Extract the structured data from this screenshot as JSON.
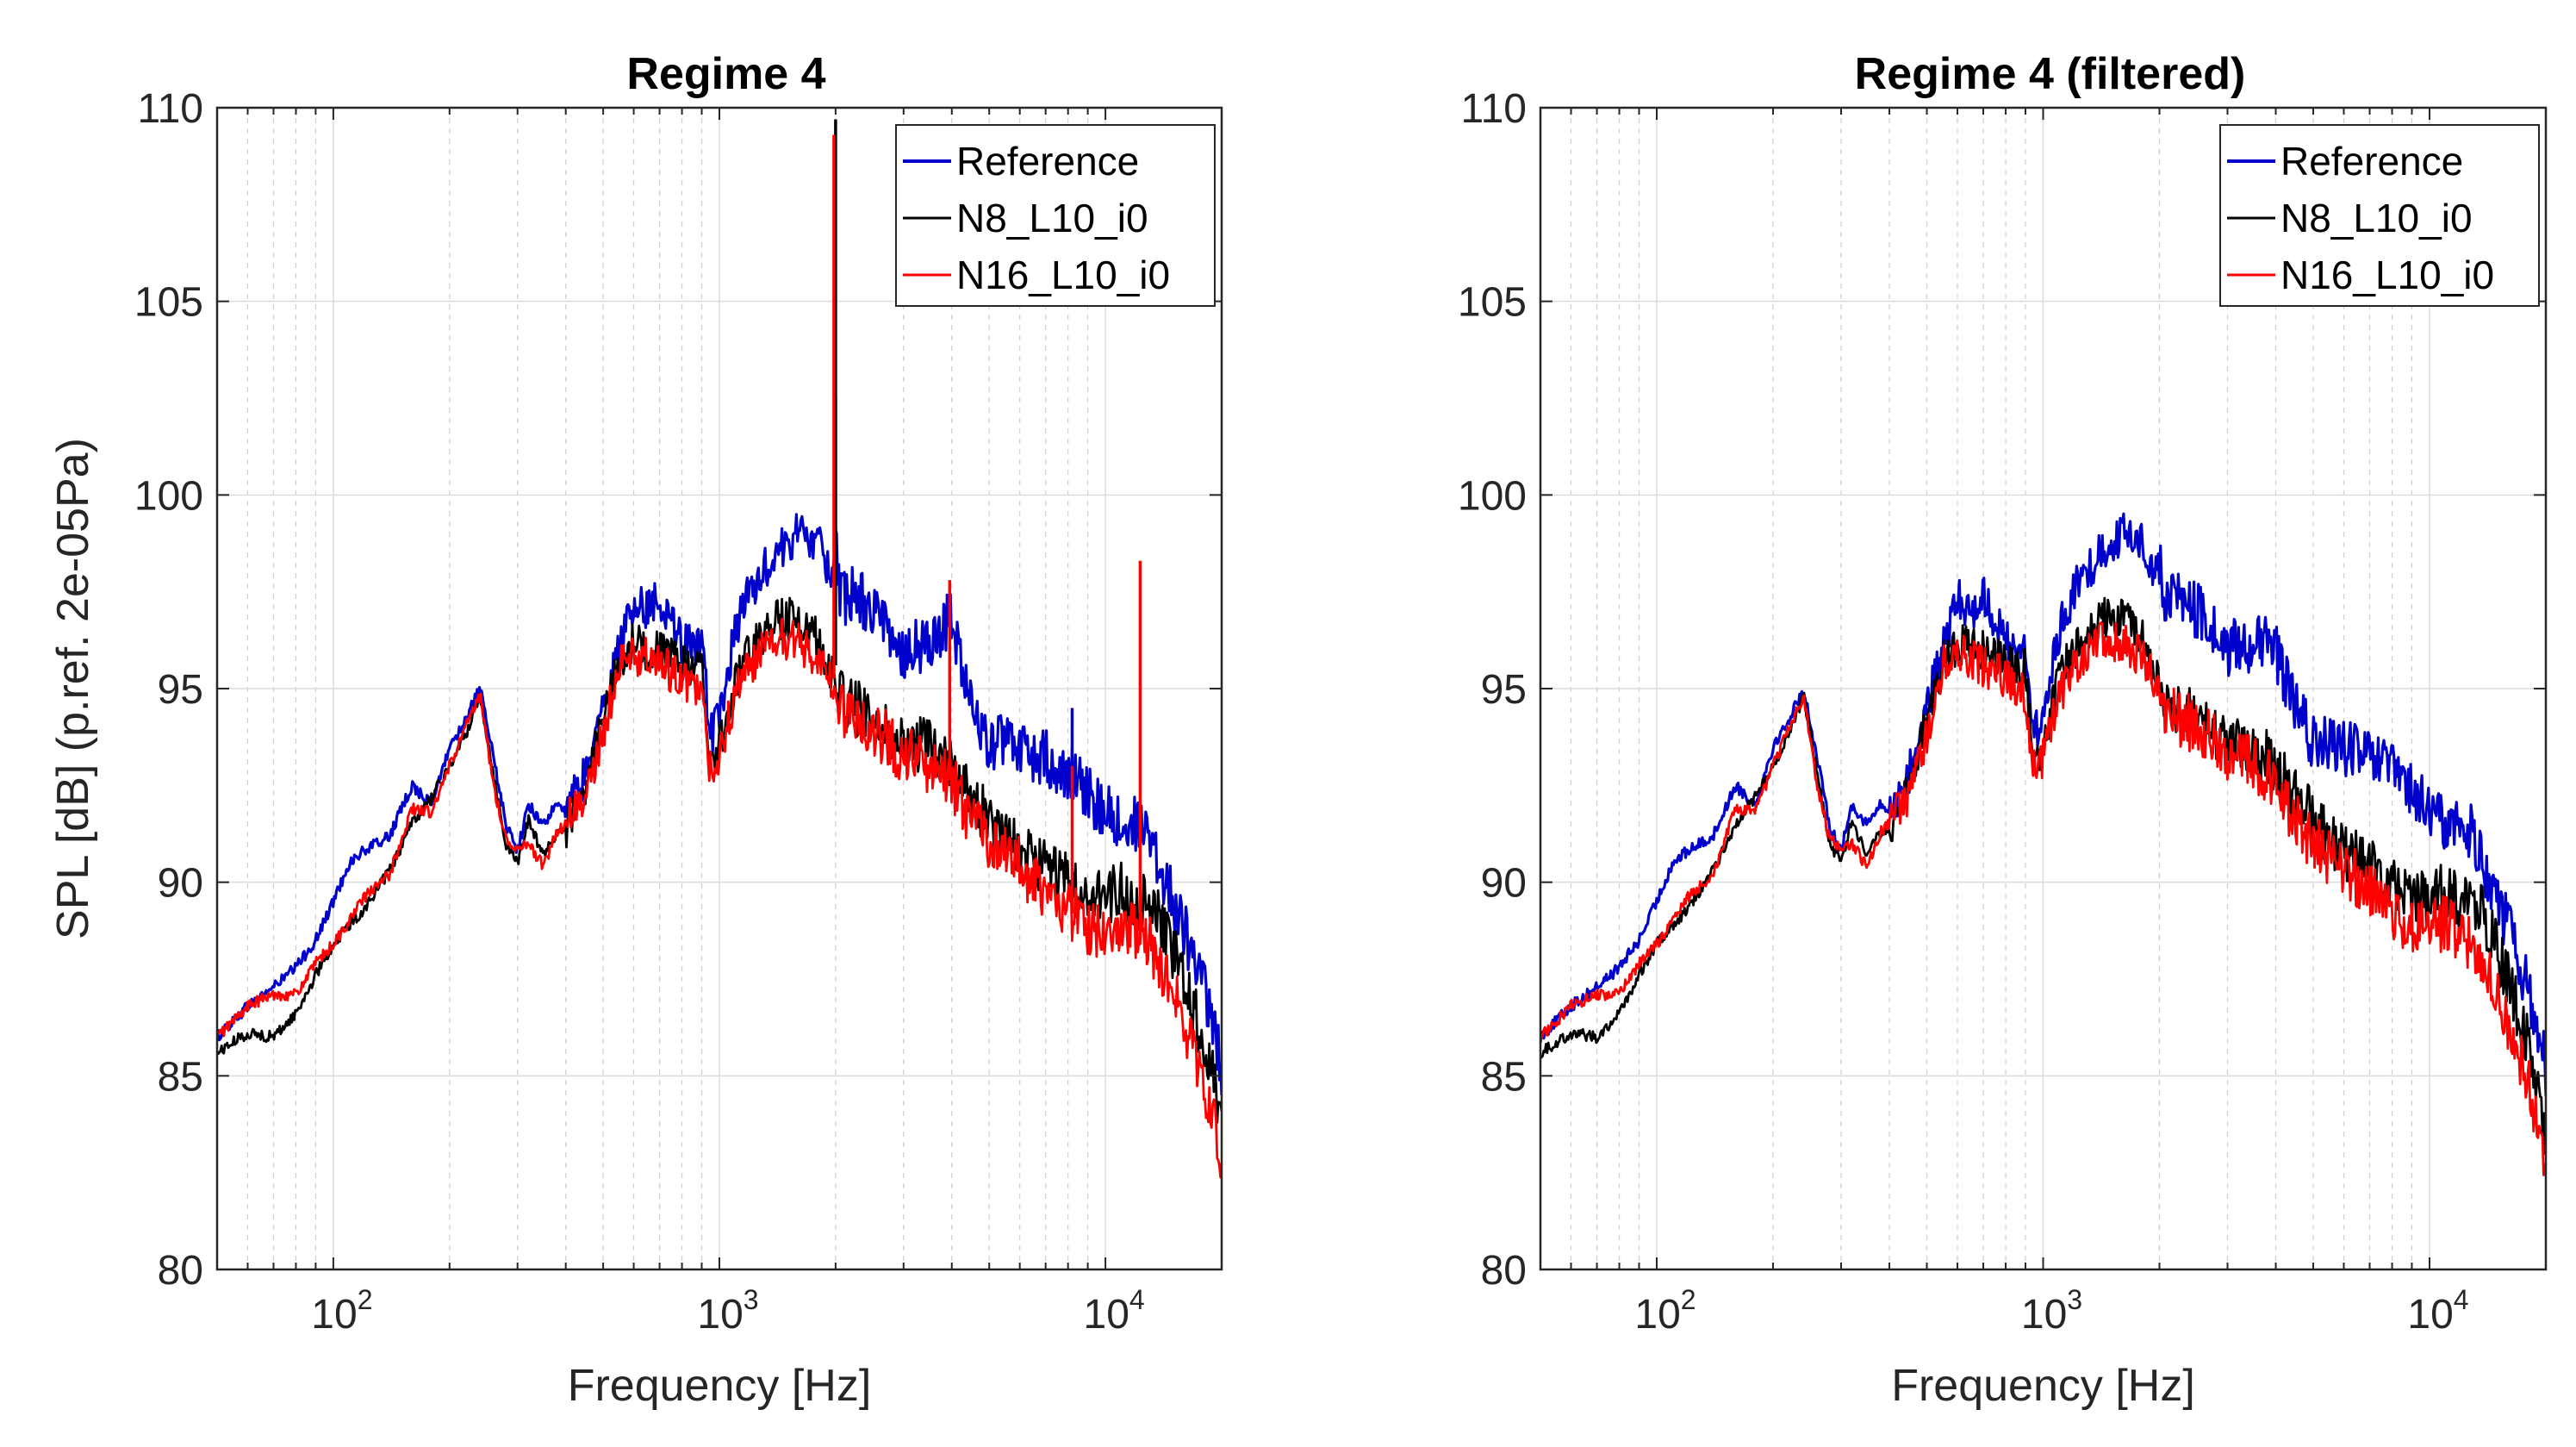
{
  "colors": {
    "reference": "#0000cc",
    "n8": "#000000",
    "n16": "#ff0000",
    "grid_major": "#dcdcdc",
    "grid_minor": "#cfcfcf",
    "axis": "#262626"
  },
  "chart_data": [
    {
      "type": "line",
      "title": "Regime 4",
      "xlabel": "Frequency [Hz]",
      "ylabel": "SPL [dB] (p.ref. 2e-05Pa)",
      "xscale": "log",
      "xlim": [
        50,
        20000
      ],
      "ylim": [
        80,
        110
      ],
      "yticks": [
        "80",
        "85",
        "90",
        "95",
        "100",
        "105",
        "110"
      ],
      "xticks": [
        {
          "base": "10",
          "exp": "2",
          "value": 100
        },
        {
          "base": "10",
          "exp": "3",
          "value": 1000
        },
        {
          "base": "10",
          "exp": "4",
          "value": 10000
        }
      ],
      "grid": true,
      "legend_position": "top-right",
      "series": [
        {
          "name": "Reference",
          "color_key": "reference",
          "x": [
            50,
            60,
            70,
            80,
            90,
            100,
            110,
            120,
            140,
            160,
            180,
            200,
            220,
            240,
            260,
            280,
            300,
            320,
            350,
            380,
            400,
            450,
            500,
            550,
            600,
            650,
            700,
            800,
            900,
            950,
            1000,
            1100,
            1200,
            1400,
            1600,
            1800,
            1950,
            2000,
            2050,
            2200,
            2500,
            3000,
            3500,
            4000,
            4500,
            5000,
            6000,
            7000,
            8000,
            9000,
            10000,
            11000,
            12000,
            13000,
            14000,
            15000,
            16000,
            17000,
            18000,
            19000,
            20000
          ],
          "y": [
            86.0,
            86.8,
            87.3,
            87.8,
            88.5,
            89.5,
            90.5,
            90.8,
            91.2,
            92.5,
            92.0,
            93.5,
            94.2,
            95.0,
            93.2,
            91.5,
            90.8,
            92.0,
            91.5,
            92.0,
            91.8,
            92.8,
            94.5,
            96.0,
            97.3,
            97.0,
            97.4,
            96.2,
            96.0,
            93.8,
            94.2,
            96.5,
            97.5,
            98.5,
            99.0,
            98.8,
            98.0,
            98.8,
            97.2,
            97.5,
            97.0,
            96.0,
            96.2,
            96.8,
            94.5,
            93.6,
            93.5,
            93.2,
            92.9,
            92.3,
            91.8,
            91.5,
            91.5,
            91.2,
            90.3,
            89.5,
            88.8,
            88.0,
            87.2,
            86.2,
            85.2
          ],
          "spikes": [
            {
              "x": 2000,
              "y": 102.5
            },
            {
              "x": 8200,
              "y": 94.5
            }
          ]
        },
        {
          "name": "N8_L10_i0",
          "color_key": "n8",
          "x": [
            50,
            60,
            70,
            80,
            90,
            100,
            110,
            120,
            140,
            160,
            180,
            200,
            220,
            240,
            260,
            280,
            300,
            320,
            350,
            380,
            400,
            450,
            500,
            550,
            600,
            650,
            700,
            800,
            900,
            950,
            1000,
            1100,
            1200,
            1400,
            1600,
            1800,
            1950,
            2000,
            2050,
            2200,
            2500,
            3000,
            3500,
            4000,
            4500,
            5000,
            6000,
            7000,
            8000,
            9000,
            10000,
            11000,
            12000,
            13000,
            14000,
            15000,
            16000,
            17000,
            18000,
            19000,
            20000
          ],
          "y": [
            85.6,
            86.1,
            86.0,
            86.6,
            87.6,
            88.4,
            88.9,
            89.3,
            90.3,
            91.5,
            92.2,
            93.0,
            93.8,
            94.8,
            92.8,
            91.0,
            90.5,
            91.6,
            90.7,
            91.3,
            91.4,
            92.4,
            94.2,
            95.7,
            96.2,
            96.0,
            96.0,
            95.6,
            95.5,
            93.0,
            93.6,
            95.2,
            96.0,
            96.8,
            96.8,
            96.3,
            95.4,
            95.6,
            94.8,
            94.6,
            94.2,
            93.6,
            93.5,
            93.0,
            92.2,
            91.6,
            90.8,
            90.4,
            90.0,
            89.5,
            89.6,
            89.8,
            89.4,
            89.5,
            89.0,
            88.2,
            87.4,
            86.6,
            85.9,
            84.9,
            83.5
          ],
          "spikes": [
            {
              "x": 2000,
              "y": 109.7
            }
          ]
        },
        {
          "name": "N16_L10_i0",
          "color_key": "n16",
          "x": [
            50,
            60,
            70,
            80,
            90,
            100,
            110,
            120,
            140,
            160,
            180,
            200,
            220,
            240,
            260,
            280,
            300,
            320,
            350,
            380,
            400,
            450,
            500,
            550,
            600,
            650,
            700,
            800,
            900,
            950,
            1000,
            1100,
            1200,
            1400,
            1600,
            1800,
            1950,
            2000,
            2050,
            2200,
            2500,
            3000,
            3500,
            4000,
            4500,
            5000,
            6000,
            7000,
            8000,
            9000,
            10000,
            11000,
            12000,
            13000,
            14000,
            15000,
            16000,
            17000,
            18000,
            19000,
            20000
          ],
          "y": [
            86.0,
            86.8,
            87.1,
            87.1,
            87.9,
            88.4,
            89.0,
            89.6,
            90.2,
            91.9,
            91.8,
            93.0,
            94.0,
            94.8,
            92.5,
            91.1,
            90.9,
            91.0,
            90.4,
            91.3,
            91.5,
            92.2,
            93.8,
            95.6,
            95.9,
            95.8,
            95.6,
            95.3,
            94.8,
            92.8,
            93.3,
            94.8,
            95.6,
            96.3,
            96.2,
            95.8,
            95.2,
            95.3,
            94.5,
            94.3,
            94.0,
            93.3,
            93.0,
            92.6,
            91.6,
            91.0,
            90.4,
            89.8,
            89.3,
            88.8,
            88.8,
            89.0,
            88.6,
            88.4,
            87.8,
            87.1,
            86.3,
            85.5,
            84.8,
            83.9,
            82.4
          ],
          "spikes": [
            {
              "x": 1980,
              "y": 109.3
            },
            {
              "x": 3950,
              "y": 97.8
            },
            {
              "x": 12300,
              "y": 98.3
            },
            {
              "x": 8200,
              "y": 93.0
            }
          ]
        }
      ]
    },
    {
      "type": "line",
      "title": "Regime 4 (filtered)",
      "xlabel": "Frequency [Hz]",
      "ylabel": "",
      "xscale": "log",
      "xlim": [
        50,
        20000
      ],
      "ylim": [
        80,
        110
      ],
      "yticks": [
        "80",
        "85",
        "90",
        "95",
        "100",
        "105",
        "110"
      ],
      "xticks": [
        {
          "base": "10",
          "exp": "2",
          "value": 100
        },
        {
          "base": "10",
          "exp": "3",
          "value": 1000
        },
        {
          "base": "10",
          "exp": "4",
          "value": 10000
        }
      ],
      "grid": true,
      "legend_position": "top-right",
      "series": [
        {
          "name": "Reference",
          "color_key": "reference",
          "x": [
            50,
            60,
            70,
            80,
            90,
            100,
            110,
            120,
            140,
            160,
            180,
            200,
            220,
            240,
            260,
            280,
            300,
            320,
            350,
            380,
            400,
            450,
            500,
            550,
            600,
            650,
            700,
            800,
            900,
            950,
            1000,
            1100,
            1200,
            1400,
            1600,
            1800,
            1950,
            2000,
            2050,
            2200,
            2500,
            3000,
            3500,
            4000,
            4500,
            5000,
            6000,
            7000,
            8000,
            9000,
            10000,
            11000,
            12000,
            13000,
            14000,
            15000,
            16000,
            17000,
            18000,
            19000,
            20000
          ],
          "y": [
            86.0,
            86.8,
            87.3,
            87.8,
            88.5,
            89.5,
            90.5,
            90.8,
            91.2,
            92.5,
            92.0,
            93.5,
            94.2,
            95.0,
            93.2,
            91.5,
            90.8,
            92.0,
            91.5,
            92.0,
            91.8,
            92.8,
            94.5,
            96.0,
            97.3,
            97.0,
            97.4,
            96.2,
            96.0,
            93.8,
            94.2,
            96.5,
            97.5,
            98.5,
            99.0,
            98.8,
            98.0,
            98.2,
            97.2,
            97.5,
            97.0,
            96.0,
            96.2,
            96.0,
            94.5,
            93.6,
            93.5,
            93.2,
            92.9,
            92.3,
            91.8,
            91.5,
            91.5,
            91.2,
            90.3,
            89.5,
            88.8,
            88.0,
            87.2,
            86.2,
            85.2
          ],
          "spikes": []
        },
        {
          "name": "N8_L10_i0",
          "color_key": "n8",
          "x": [
            50,
            60,
            70,
            80,
            90,
            100,
            110,
            120,
            140,
            160,
            180,
            200,
            220,
            240,
            260,
            280,
            300,
            320,
            350,
            380,
            400,
            450,
            500,
            550,
            600,
            650,
            700,
            800,
            900,
            950,
            1000,
            1100,
            1200,
            1400,
            1600,
            1800,
            1950,
            2000,
            2050,
            2200,
            2500,
            3000,
            3500,
            4000,
            4500,
            5000,
            6000,
            7000,
            8000,
            9000,
            10000,
            11000,
            12000,
            13000,
            14000,
            15000,
            16000,
            17000,
            18000,
            19000,
            20000
          ],
          "y": [
            85.6,
            86.1,
            86.0,
            86.6,
            87.6,
            88.4,
            88.9,
            89.3,
            90.3,
            91.5,
            92.2,
            93.0,
            93.8,
            94.8,
            92.8,
            91.0,
            90.5,
            91.6,
            90.7,
            91.3,
            91.4,
            92.4,
            94.2,
            95.7,
            96.2,
            96.0,
            96.0,
            95.6,
            95.5,
            93.0,
            93.6,
            95.2,
            96.0,
            96.8,
            96.8,
            96.3,
            95.4,
            95.2,
            94.8,
            94.6,
            94.2,
            93.6,
            93.5,
            93.0,
            92.2,
            91.6,
            90.8,
            90.4,
            90.0,
            89.5,
            89.6,
            89.8,
            89.4,
            89.5,
            89.0,
            88.2,
            87.4,
            86.6,
            85.9,
            84.9,
            83.5
          ],
          "spikes": []
        },
        {
          "name": "N16_L10_i0",
          "color_key": "n16",
          "x": [
            50,
            60,
            70,
            80,
            90,
            100,
            110,
            120,
            140,
            160,
            180,
            200,
            220,
            240,
            260,
            280,
            300,
            320,
            350,
            380,
            400,
            450,
            500,
            550,
            600,
            650,
            700,
            800,
            900,
            950,
            1000,
            1100,
            1200,
            1400,
            1600,
            1800,
            1950,
            2000,
            2050,
            2200,
            2500,
            3000,
            3500,
            4000,
            4500,
            5000,
            6000,
            7000,
            8000,
            9000,
            10000,
            11000,
            12000,
            13000,
            14000,
            15000,
            16000,
            17000,
            18000,
            19000,
            20000
          ],
          "y": [
            86.0,
            86.8,
            87.1,
            87.1,
            87.9,
            88.4,
            89.0,
            89.6,
            90.2,
            91.9,
            91.8,
            93.0,
            94.0,
            94.8,
            92.5,
            91.1,
            90.9,
            91.0,
            90.4,
            91.3,
            91.5,
            92.2,
            93.8,
            95.6,
            95.9,
            95.8,
            95.6,
            95.3,
            94.8,
            92.8,
            93.3,
            94.8,
            95.6,
            96.3,
            96.2,
            95.8,
            95.2,
            95.0,
            94.5,
            94.3,
            94.0,
            93.3,
            93.0,
            92.6,
            91.6,
            91.0,
            90.4,
            89.8,
            89.3,
            88.8,
            88.8,
            89.0,
            88.6,
            88.4,
            87.8,
            87.1,
            86.3,
            85.5,
            84.8,
            83.9,
            82.4
          ],
          "spikes": []
        }
      ]
    }
  ]
}
